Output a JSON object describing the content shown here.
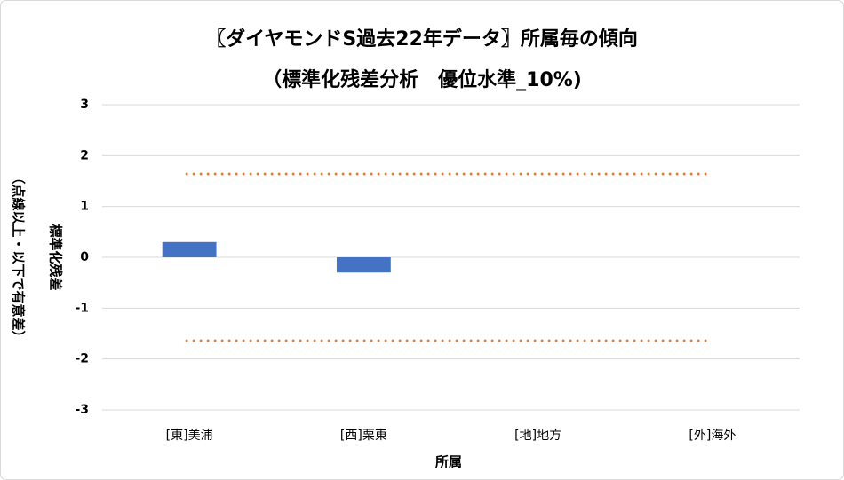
{
  "chart_data": {
    "type": "bar",
    "title": "〖ダイヤモンドS過去22年データ〗所属毎の傾向",
    "subtitle": "（標準化残差分析　優位水準_10%)",
    "x_label": "所属",
    "y_label": [
      "標準化残差",
      "（点線以上・以下で有意差）"
    ],
    "categories": [
      "[東]美浦",
      "[西]栗東",
      "[地]地方",
      "[外]海外"
    ],
    "values": [
      0.3,
      -0.3,
      0,
      0
    ],
    "color": "#4472c4",
    "reference_lines": [
      1.64,
      -1.64
    ],
    "reference_color": "#ed7d31",
    "ylim": [
      -3,
      3
    ],
    "yticks": [
      -3,
      -2,
      -1,
      0,
      1,
      2,
      3
    ],
    "grid": true
  }
}
